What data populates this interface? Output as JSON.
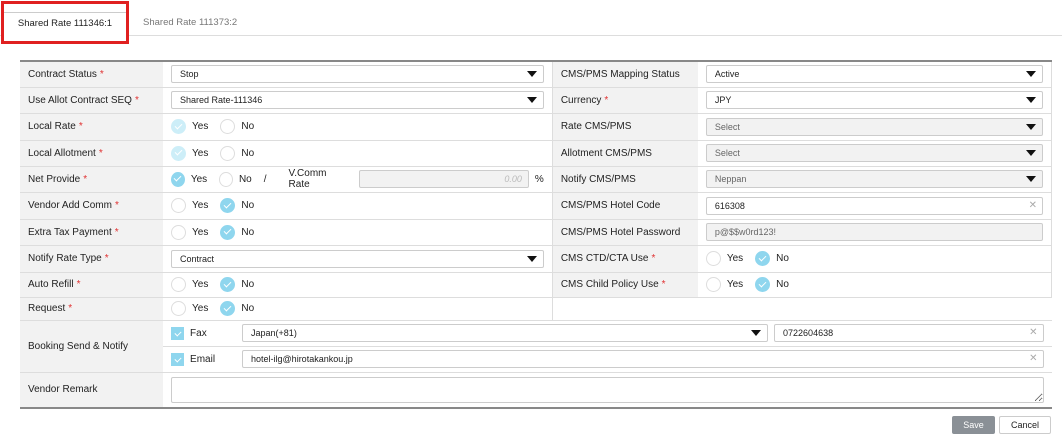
{
  "tabs": [
    {
      "label": "Shared Rate 111346:1",
      "active": true
    },
    {
      "label": "Shared Rate 111373:2",
      "active": false
    }
  ],
  "rows": [
    {
      "left": {
        "label": "Contract Status",
        "req": true,
        "type": "select",
        "value": "Stop"
      },
      "right": {
        "label": "CMS/PMS Mapping Status",
        "req": false,
        "type": "select",
        "value": "Active"
      }
    },
    {
      "left": {
        "label": "Use Allot Contract SEQ",
        "req": true,
        "type": "select",
        "value": "Shared Rate-111346"
      },
      "right": {
        "label": "Currency",
        "req": true,
        "type": "select",
        "value": "JPY"
      }
    },
    {
      "left": {
        "label": "Local Rate",
        "req": true,
        "type": "radio",
        "selected": "Yes",
        "disabled": true
      },
      "right": {
        "label": "Rate CMS/PMS",
        "req": false,
        "type": "select",
        "value": "Select",
        "disabled": true
      }
    },
    {
      "left": {
        "label": "Local Allotment",
        "req": true,
        "type": "radio",
        "selected": "Yes",
        "disabled": true
      },
      "right": {
        "label": "Allotment CMS/PMS",
        "req": false,
        "type": "select",
        "value": "Select",
        "disabled": true
      }
    },
    {
      "left": {
        "label": "Net Provide",
        "req": true,
        "type": "radio",
        "selected": "Yes",
        "extra": {
          "sep": "/",
          "label": "V.Comm Rate",
          "value": "0.00",
          "unit": "%"
        }
      },
      "right": {
        "label": "Notify CMS/PMS",
        "req": false,
        "type": "select",
        "value": "Neppan",
        "disabled": true
      }
    },
    {
      "left": {
        "label": "Vendor Add Comm",
        "req": true,
        "type": "radio",
        "selected": "No"
      },
      "right": {
        "label": "CMS/PMS Hotel Code",
        "req": false,
        "type": "input",
        "value": "616308"
      }
    },
    {
      "left": {
        "label": "Extra Tax Payment",
        "req": true,
        "type": "radio",
        "selected": "No"
      },
      "right": {
        "label": "CMS/PMS Hotel Password",
        "req": false,
        "type": "input",
        "value": "p@$$w0rd123!",
        "disabled": true
      }
    },
    {
      "left": {
        "label": "Notify Rate Type",
        "req": true,
        "type": "select",
        "value": "Contract"
      },
      "right": {
        "label": "CMS CTD/CTA Use",
        "req": true,
        "type": "radio",
        "selected": "No"
      }
    },
    {
      "left": {
        "label": "Auto Refill",
        "req": true,
        "type": "radio",
        "selected": "No"
      },
      "right": {
        "label": "CMS Child Policy Use",
        "req": true,
        "type": "radio",
        "selected": "No"
      }
    },
    {
      "left": {
        "label": "Request",
        "req": true,
        "type": "radio",
        "selected": "No"
      },
      "right": null
    }
  ],
  "radio_labels": {
    "yes": "Yes",
    "no": "No"
  },
  "booking": {
    "label": "Booking Send & Notify",
    "fax": {
      "label": "Fax",
      "checked": true,
      "country": "Japan(+81)",
      "number": "0722604638"
    },
    "email": {
      "label": "Email",
      "checked": true,
      "value": "hotel-ilg@hirotakankou.jp"
    }
  },
  "remark": {
    "label": "Vendor Remark",
    "value": ""
  },
  "buttons": {
    "save": "Save",
    "cancel": "Cancel"
  },
  "required_mark": "*",
  "colors": {
    "accent": "#8fd6ee",
    "required": "#e03030",
    "highlight": "#e02020"
  }
}
